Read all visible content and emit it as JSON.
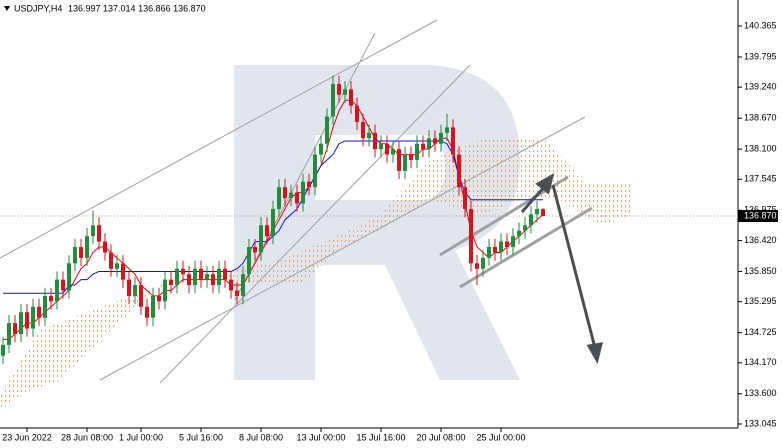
{
  "chart_data": {
    "type": "candlestick",
    "title": "USDJPY,H4",
    "quote": "136.997 137.014 136.866 136.870",
    "up_color": "#1f8f3a",
    "down_color": "#e0101b",
    "grid": false,
    "ylim": [
      132.971,
      140.843
    ],
    "yticks": [
      140.365,
      139.795,
      {
        "value": 139.24,
        "label": "139.240"
      },
      {
        "value": 138.67,
        "label": "138.670"
      },
      {
        "value": 138.1,
        "label": "138.100"
      },
      137.545,
      136.975,
      {
        "value": 136.42,
        "label": "136.420"
      },
      {
        "value": 135.85,
        "label": "135.850"
      },
      135.295,
      134.725,
      {
        "value": 134.17,
        "label": "134.170"
      },
      {
        "value": 133.6,
        "label": "133.600"
      },
      133.045
    ],
    "last_price": {
      "value": 136.87,
      "label": "136.870"
    },
    "categories": [
      null,
      null,
      null,
      null,
      "23 Jun 2022",
      null,
      null,
      null,
      null,
      null,
      null,
      null,
      null,
      null,
      "28 Jun 08:00",
      null,
      null,
      null,
      null,
      null,
      null,
      null,
      null,
      "1 Jul 00:00",
      null,
      null,
      null,
      null,
      null,
      null,
      null,
      null,
      null,
      "5 Jul 16:00",
      null,
      null,
      null,
      null,
      null,
      null,
      null,
      null,
      null,
      "8 Jul 08:00",
      null,
      null,
      null,
      null,
      null,
      null,
      null,
      null,
      null,
      "13 Jul 00:00",
      null,
      null,
      null,
      null,
      null,
      null,
      null,
      null,
      null,
      "15 Jul 16:00",
      null,
      null,
      null,
      null,
      null,
      null,
      null,
      null,
      null,
      "20 Jul 08:00",
      null,
      null,
      null,
      null,
      null,
      null,
      null,
      null,
      null,
      "25 Jul 00:00",
      null,
      null,
      null,
      null,
      null,
      null,
      null
    ],
    "open": [
      134.3,
      134.5,
      134.9,
      134.7,
      135.1,
      134.8,
      135.2,
      135.0,
      135.4,
      135.3,
      135.7,
      135.5,
      136.0,
      136.3,
      136.1,
      136.5,
      136.7,
      136.4,
      136.2,
      135.9,
      136.0,
      135.7,
      135.4,
      135.6,
      135.2,
      135.0,
      135.4,
      135.3,
      135.7,
      135.6,
      135.9,
      135.8,
      135.6,
      135.9,
      135.7,
      135.8,
      135.6,
      135.9,
      135.7,
      135.5,
      135.4,
      135.8,
      136.3,
      136.2,
      136.7,
      136.5,
      137.0,
      137.4,
      137.2,
      137.3,
      137.1,
      137.5,
      137.4,
      138.0,
      138.2,
      138.7,
      139.3,
      139.1,
      139.2,
      138.9,
      138.6,
      138.3,
      138.4,
      138.1,
      138.2,
      138.0,
      138.1,
      137.7,
      138.0,
      137.9,
      138.2,
      138.1,
      138.3,
      138.2,
      138.4,
      138.5,
      138.0,
      137.4,
      137.0,
      136.0,
      135.9,
      136.1,
      136.3,
      136.2,
      136.4,
      136.3,
      136.5,
      136.6,
      136.7,
      136.9,
      136.997
    ],
    "high": [
      134.65,
      135.05,
      135.05,
      135.25,
      135.25,
      135.35,
      135.35,
      135.55,
      135.55,
      135.85,
      135.85,
      136.15,
      136.45,
      136.45,
      136.65,
      136.97,
      136.85,
      136.55,
      136.35,
      136.15,
      136.15,
      135.85,
      135.75,
      135.75,
      135.35,
      135.55,
      135.55,
      135.85,
      135.85,
      136.05,
      136.05,
      135.95,
      136.05,
      136.05,
      135.95,
      135.95,
      136.05,
      136.05,
      135.85,
      135.65,
      135.95,
      136.45,
      136.45,
      136.85,
      136.85,
      137.15,
      137.55,
      137.55,
      137.45,
      137.45,
      137.65,
      137.65,
      138.15,
      138.35,
      138.85,
      139.45,
      139.45,
      139.35,
      139.35,
      139.05,
      138.75,
      138.55,
      138.55,
      138.35,
      138.35,
      138.25,
      138.25,
      138.15,
      138.15,
      138.35,
      138.35,
      138.45,
      138.45,
      138.55,
      138.75,
      138.65,
      138.15,
      137.55,
      137.15,
      136.15,
      136.25,
      136.45,
      136.45,
      136.55,
      136.55,
      136.65,
      136.75,
      136.85,
      137.05,
      137.15,
      137.014
    ],
    "low": [
      134.15,
      134.35,
      134.55,
      134.55,
      134.65,
      134.65,
      134.85,
      134.85,
      135.15,
      135.15,
      135.35,
      135.35,
      135.85,
      135.95,
      135.95,
      136.35,
      136.25,
      136.05,
      135.75,
      135.75,
      135.55,
      135.25,
      135.25,
      135.05,
      134.85,
      134.85,
      135.15,
      135.15,
      135.45,
      135.45,
      135.65,
      135.45,
      135.45,
      135.55,
      135.55,
      135.45,
      135.45,
      135.55,
      135.35,
      135.25,
      135.25,
      135.65,
      136.05,
      136.05,
      136.35,
      136.35,
      136.85,
      137.05,
      137.05,
      136.95,
      136.95,
      137.25,
      137.25,
      137.85,
      138.05,
      138.55,
      138.95,
      138.95,
      138.75,
      138.45,
      138.15,
      138.15,
      137.95,
      137.95,
      137.85,
      137.85,
      137.55,
      137.55,
      137.75,
      137.75,
      137.95,
      137.95,
      138.05,
      138.05,
      138.25,
      137.85,
      137.25,
      136.85,
      135.85,
      135.6,
      135.75,
      135.95,
      136.05,
      136.05,
      136.15,
      136.15,
      136.35,
      136.45,
      136.55,
      136.75,
      136.866
    ],
    "close": [
      134.5,
      134.9,
      134.7,
      135.1,
      134.8,
      135.2,
      135.0,
      135.4,
      135.3,
      135.7,
      135.5,
      136.0,
      136.3,
      136.1,
      136.5,
      136.7,
      136.4,
      136.2,
      135.9,
      136.0,
      135.7,
      135.4,
      135.6,
      135.2,
      135.0,
      135.4,
      135.3,
      135.7,
      135.6,
      135.9,
      135.8,
      135.6,
      135.9,
      135.7,
      135.8,
      135.6,
      135.9,
      135.7,
      135.5,
      135.4,
      135.8,
      136.3,
      136.2,
      136.7,
      136.5,
      137.0,
      137.4,
      137.2,
      137.3,
      137.1,
      137.5,
      137.4,
      138.0,
      138.2,
      138.7,
      139.3,
      139.1,
      139.2,
      138.9,
      138.6,
      138.3,
      138.4,
      138.1,
      138.2,
      138.0,
      138.1,
      137.7,
      138.0,
      137.9,
      138.2,
      138.1,
      138.3,
      138.2,
      138.4,
      138.5,
      138.0,
      137.4,
      137.0,
      136.0,
      135.9,
      136.1,
      136.3,
      136.2,
      136.4,
      136.3,
      136.5,
      136.6,
      136.7,
      136.9,
      137.0,
      136.87
    ],
    "overlays": [
      {
        "color": "#e8000b",
        "values": [
          134.6,
          134.6,
          134.7,
          134.8,
          134.9,
          134.9,
          135.0,
          135.1,
          135.2,
          135.3,
          135.4,
          135.5,
          135.7,
          135.9,
          136.0,
          136.2,
          136.3,
          136.3,
          136.2,
          136.1,
          136.0,
          135.9,
          135.8,
          135.6,
          135.5,
          135.4,
          135.4,
          135.5,
          135.5,
          135.6,
          135.7,
          135.7,
          135.7,
          135.7,
          135.7,
          135.7,
          135.7,
          135.7,
          135.6,
          135.6,
          135.6,
          135.8,
          136.0,
          136.2,
          136.4,
          136.6,
          136.8,
          137.0,
          137.2,
          137.3,
          137.3,
          137.4,
          137.6,
          137.8,
          138.1,
          138.5,
          138.8,
          139.0,
          139.0,
          138.9,
          138.7,
          138.5,
          138.3,
          138.2,
          138.2,
          138.1,
          138.0,
          138.0,
          138.0,
          138.0,
          138.1,
          138.1,
          138.2,
          138.3,
          138.3,
          138.1,
          137.6,
          137.1,
          136.6,
          136.3,
          136.2,
          136.1,
          136.2,
          136.2,
          136.3,
          136.4,
          136.5,
          136.6,
          136.7,
          136.8,
          136.9
        ]
      },
      {
        "color": "#1010e0",
        "values": [
          135.45,
          135.45,
          135.45,
          135.45,
          135.45,
          135.45,
          135.45,
          135.45,
          135.45,
          135.45,
          135.45,
          135.6,
          135.6,
          135.7,
          135.7,
          135.8,
          135.85,
          135.85,
          135.85,
          135.85,
          135.85,
          135.85,
          135.85,
          135.85,
          135.85,
          135.85,
          135.85,
          135.85,
          135.85,
          135.85,
          135.85,
          135.85,
          135.85,
          135.85,
          135.85,
          135.85,
          135.85,
          135.85,
          135.85,
          135.9,
          136.0,
          136.2,
          136.4,
          136.4,
          136.4,
          136.5,
          136.6,
          136.8,
          136.9,
          137.0,
          137.2,
          137.4,
          137.6,
          137.8,
          137.9,
          138.0,
          138.2,
          138.25,
          138.25,
          138.25,
          138.25,
          138.25,
          138.25,
          138.25,
          138.25,
          138.25,
          138.25,
          138.25,
          138.25,
          138.25,
          138.25,
          138.25,
          138.25,
          138.25,
          138.2,
          138.0,
          137.6,
          137.3,
          137.17,
          137.17,
          137.17,
          137.17,
          137.17,
          137.17,
          137.17,
          137.17,
          137.17,
          137.17,
          137.17,
          137.17,
          137.17
        ]
      }
    ]
  }
}
